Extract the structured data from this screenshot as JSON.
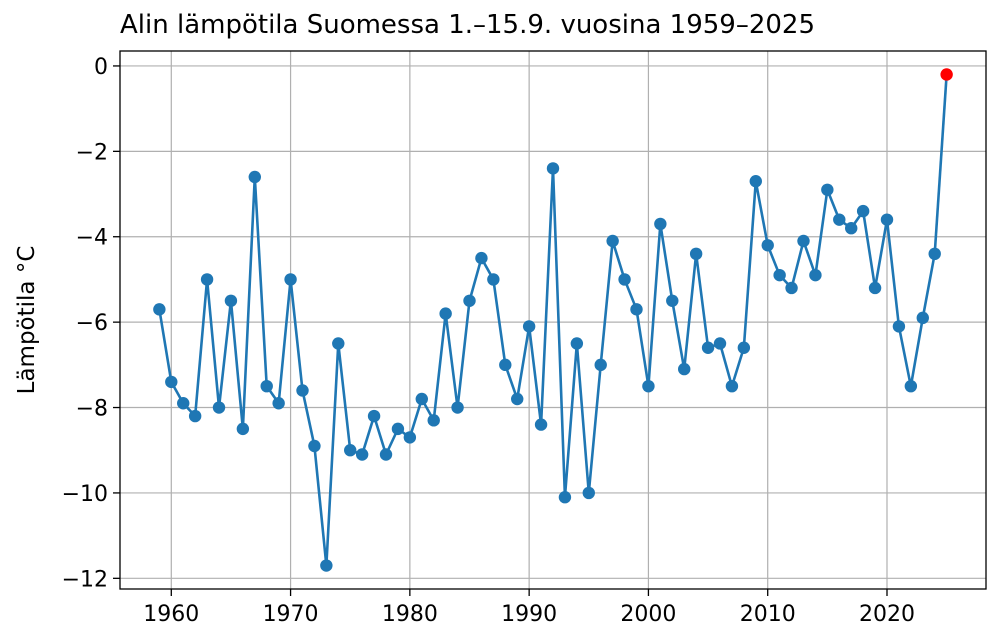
{
  "chart_data": {
    "type": "line",
    "title": "Alin lämpötila Suomessa 1.–15.9. vuosina 1959–2025",
    "xlabel": "",
    "ylabel": "Lämpötila °C",
    "xlim": [
      1955.7,
      2028.3
    ],
    "ylim": [
      -12.25,
      0.35
    ],
    "xticks": [
      1960,
      1970,
      1980,
      1990,
      2000,
      2010,
      2020
    ],
    "yticks": [
      0,
      -2,
      -4,
      -6,
      -8,
      -10,
      -12
    ],
    "ytick_labels": [
      "0",
      "−2",
      "−4",
      "−6",
      "−8",
      "−10",
      "−12"
    ],
    "grid": true,
    "series_color": "#1f77b4",
    "highlight_color": "#ff0000",
    "x": [
      1959,
      1960,
      1961,
      1962,
      1963,
      1964,
      1965,
      1966,
      1967,
      1968,
      1969,
      1970,
      1971,
      1972,
      1973,
      1974,
      1975,
      1976,
      1977,
      1978,
      1979,
      1980,
      1981,
      1982,
      1983,
      1984,
      1985,
      1986,
      1987,
      1988,
      1989,
      1990,
      1991,
      1992,
      1993,
      1994,
      1995,
      1996,
      1997,
      1998,
      1999,
      2000,
      2001,
      2002,
      2003,
      2004,
      2005,
      2006,
      2007,
      2008,
      2009,
      2010,
      2011,
      2012,
      2013,
      2014,
      2015,
      2016,
      2017,
      2018,
      2019,
      2020,
      2021,
      2022,
      2023,
      2024
    ],
    "y": [
      -5.7,
      -7.4,
      -7.9,
      -8.2,
      -5.0,
      -8.0,
      -5.5,
      -8.5,
      -2.6,
      -7.5,
      -7.9,
      -5.0,
      -7.6,
      -8.9,
      -11.7,
      -6.5,
      -9.0,
      -9.1,
      -8.2,
      -9.1,
      -8.5,
      -8.7,
      -7.8,
      -8.3,
      -5.8,
      -8.0,
      -5.5,
      -4.5,
      -5.0,
      -7.0,
      -7.8,
      -6.1,
      -8.4,
      -2.4,
      -10.1,
      -6.5,
      -10.0,
      -7.0,
      -4.1,
      -5.0,
      -5.7,
      -7.5,
      -3.7,
      -5.5,
      -7.1,
      -4.4,
      -6.6,
      -6.5,
      -7.5,
      -6.6,
      -2.7,
      -4.2,
      -4.9,
      -5.2,
      -4.1,
      -4.9,
      -2.9,
      -3.6,
      -3.8,
      -3.4,
      -5.2,
      -3.6,
      -6.1,
      -7.5,
      -5.9,
      -4.4
    ],
    "highlight": {
      "x": 2025,
      "y": -0.2
    }
  }
}
